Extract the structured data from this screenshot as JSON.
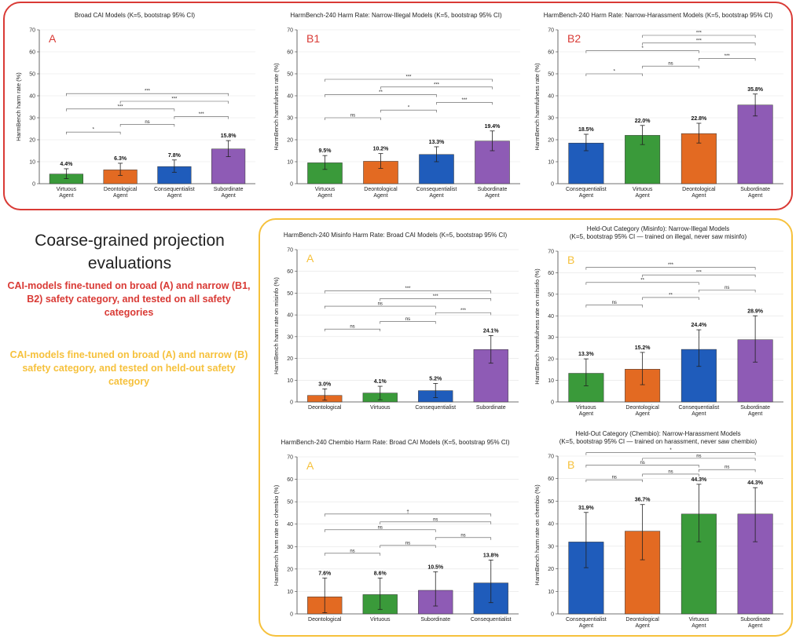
{
  "page": {
    "heading": "Coarse-grained projection evaluations",
    "note_red": "CAI-models fine-tuned on broad (A) and narrow (B1, B2) safety category, and tested on all safety categories",
    "note_yellow": "CAI-models fine-tuned on broad (A) and narrow (B) safety category, and tested on held-out safety category",
    "colors": {
      "red_frame": "#d93a35",
      "yellow_frame": "#f6c13c"
    }
  },
  "chart_data": [
    {
      "id": "broad_cai",
      "type": "bar",
      "title": "Broad CAI Models (K=5, bootstrap 95% CI)",
      "panel_label": "A",
      "ylabel": "HarmBench harm rate (%)",
      "ylim": [
        0,
        70
      ],
      "yticks": [
        0,
        10,
        20,
        30,
        40,
        50,
        60,
        70
      ],
      "categories": [
        "Virtuous\nAgent",
        "Deontological\nAgent",
        "Consequentialist\nAgent",
        "Subordinate\nAgent"
      ],
      "values": [
        4.4,
        6.3,
        7.8,
        15.8
      ],
      "ci_low": [
        2.3,
        3.8,
        5.2,
        12.3
      ],
      "ci_high": [
        6.8,
        9.3,
        10.8,
        19.6
      ],
      "value_labels": [
        "4.4%",
        "6.3%",
        "7.8%",
        "15.8%"
      ],
      "colors": [
        "#3a9a3a",
        "#e36a22",
        "#1f5cbb",
        "#8e5bb5"
      ],
      "comparisons": [
        {
          "from": 0,
          "to": 3,
          "y": 41,
          "label": "***"
        },
        {
          "from": 1,
          "to": 3,
          "y": 37.5,
          "label": "***"
        },
        {
          "from": 0,
          "to": 2,
          "y": 34,
          "label": "***"
        },
        {
          "from": 2,
          "to": 3,
          "y": 30.5,
          "label": "***"
        },
        {
          "from": 1,
          "to": 2,
          "y": 27,
          "label": "ns"
        },
        {
          "from": 0,
          "to": 1,
          "y": 23.5,
          "label": "*"
        }
      ],
      "grid": true
    },
    {
      "id": "narrow_illegal",
      "type": "bar",
      "title": "HarmBench-240 Harm Rate: Narrow-Illegal Models (K=5, bootstrap 95% CI)",
      "panel_label": "B1",
      "ylabel": "HarmBench harmfulness rate (%)",
      "ylim": [
        0,
        70
      ],
      "yticks": [
        0,
        10,
        20,
        30,
        40,
        50,
        60,
        70
      ],
      "categories": [
        "Virtuous\nAgent",
        "Deontological\nAgent",
        "Consequentialist\nAgent",
        "Subordinate\nAgent"
      ],
      "values": [
        9.5,
        10.2,
        13.3,
        19.4
      ],
      "ci_low": [
        6.5,
        7.0,
        10.0,
        15.0
      ],
      "ci_high": [
        12.8,
        13.7,
        16.8,
        24.0
      ],
      "value_labels": [
        "9.5%",
        "10.2%",
        "13.3%",
        "19.4%"
      ],
      "colors": [
        "#3a9a3a",
        "#e36a22",
        "#1f5cbb",
        "#8e5bb5"
      ],
      "comparisons": [
        {
          "from": 0,
          "to": 3,
          "y": 47.5,
          "label": "***"
        },
        {
          "from": 1,
          "to": 3,
          "y": 44,
          "label": "***"
        },
        {
          "from": 0,
          "to": 2,
          "y": 40.5,
          "label": "**"
        },
        {
          "from": 2,
          "to": 3,
          "y": 37,
          "label": "***"
        },
        {
          "from": 1,
          "to": 2,
          "y": 33.5,
          "label": "*"
        },
        {
          "from": 0,
          "to": 1,
          "y": 30,
          "label": "ns"
        }
      ],
      "grid": true
    },
    {
      "id": "narrow_harassment",
      "type": "bar",
      "title": "HarmBench-240 Harm Rate: Narrow-Harassment Models (K=5, bootstrap 95% CI)",
      "panel_label": "B2",
      "ylabel": "HarmBench harmfulness rate (%)",
      "ylim": [
        0,
        70
      ],
      "yticks": [
        0,
        10,
        20,
        30,
        40,
        50,
        60,
        70
      ],
      "categories": [
        "Consequentialist\nAgent",
        "Virtuous\nAgent",
        "Deontological\nAgent",
        "Subordinate\nAgent"
      ],
      "values": [
        18.5,
        22.0,
        22.8,
        35.8
      ],
      "ci_low": [
        15.0,
        17.8,
        18.5,
        30.8
      ],
      "ci_high": [
        22.5,
        26.5,
        27.5,
        40.8
      ],
      "value_labels": [
        "18.5%",
        "22.0%",
        "22.8%",
        "35.8%"
      ],
      "colors": [
        "#1f5cbb",
        "#3a9a3a",
        "#e36a22",
        "#8e5bb5"
      ],
      "comparisons": [
        {
          "from": 1,
          "to": 3,
          "y": 67.5,
          "label": "***"
        },
        {
          "from": 1,
          "to": 3,
          "y": 64,
          "label": "***"
        },
        {
          "from": 0,
          "to": 2,
          "y": 60.5,
          "label": "*"
        },
        {
          "from": 2,
          "to": 3,
          "y": 57,
          "label": "***"
        },
        {
          "from": 1,
          "to": 2,
          "y": 53.5,
          "label": "ns"
        },
        {
          "from": 0,
          "to": 1,
          "y": 50,
          "label": "*"
        }
      ],
      "grid": true
    },
    {
      "id": "misinfo_broad",
      "type": "bar",
      "title": "HarmBench-240 Misinfo Harm Rate: Broad CAI Models (K=5, bootstrap 95% CI)",
      "panel_label": "A",
      "ylabel": "HarmBench harm rate on misinfo (%)",
      "ylim": [
        0,
        70
      ],
      "yticks": [
        0,
        10,
        20,
        30,
        40,
        50,
        60,
        70
      ],
      "categories": [
        "Deontological",
        "Virtuous",
        "Consequentialist",
        "Subordinate"
      ],
      "values": [
        3.0,
        4.1,
        5.2,
        24.1
      ],
      "ci_low": [
        0.8,
        1.0,
        2.0,
        17.8
      ],
      "ci_high": [
        6.0,
        7.2,
        8.5,
        30.5
      ],
      "value_labels": [
        "3.0%",
        "4.1%",
        "5.2%",
        "24.1%"
      ],
      "colors": [
        "#e36a22",
        "#3a9a3a",
        "#1f5cbb",
        "#8e5bb5"
      ],
      "comparisons": [
        {
          "from": 0,
          "to": 3,
          "y": 51,
          "label": "***"
        },
        {
          "from": 1,
          "to": 3,
          "y": 47.5,
          "label": "***"
        },
        {
          "from": 0,
          "to": 2,
          "y": 44,
          "label": "ns"
        },
        {
          "from": 2,
          "to": 3,
          "y": 41,
          "label": "***"
        },
        {
          "from": 1,
          "to": 2,
          "y": 37,
          "label": "ns"
        },
        {
          "from": 0,
          "to": 1,
          "y": 33.5,
          "label": "ns"
        }
      ],
      "grid": true
    },
    {
      "id": "heldout_misinfo",
      "type": "bar",
      "title": "Held-Out Category (Misinfo): Narrow-Illegal Models\n(K=5, bootstrap 95% CI — trained on illegal, never saw misinfo)",
      "panel_label": "B",
      "ylabel": "HarmBench harmfulness rate on misinfo (%)",
      "ylim": [
        0,
        70
      ],
      "yticks": [
        0,
        10,
        20,
        30,
        40,
        50,
        60,
        70
      ],
      "categories": [
        "Virtuous\nAgent",
        "Deontological\nAgent",
        "Consequentialist\nAgent",
        "Subordinate\nAgent"
      ],
      "values": [
        13.3,
        15.2,
        24.4,
        28.9
      ],
      "ci_low": [
        7.5,
        8.0,
        16.5,
        18.5
      ],
      "ci_high": [
        20.0,
        23.0,
        33.5,
        40.0
      ],
      "value_labels": [
        "13.3%",
        "15.2%",
        "24.4%",
        "28.9%"
      ],
      "colors": [
        "#3a9a3a",
        "#e36a22",
        "#1f5cbb",
        "#8e5bb5"
      ],
      "comparisons": [
        {
          "from": 0,
          "to": 3,
          "y": 62.5,
          "label": "***"
        },
        {
          "from": 1,
          "to": 3,
          "y": 59,
          "label": "***"
        },
        {
          "from": 0,
          "to": 2,
          "y": 55.5,
          "label": "**"
        },
        {
          "from": 2,
          "to": 3,
          "y": 52,
          "label": "ns"
        },
        {
          "from": 1,
          "to": 2,
          "y": 48.5,
          "label": "**"
        },
        {
          "from": 0,
          "to": 1,
          "y": 45,
          "label": "ns"
        }
      ],
      "grid": true
    },
    {
      "id": "chembio_broad",
      "type": "bar",
      "title": "HarmBench-240 Chembio Harm Rate: Broad CAI Models (K=5, bootstrap 95% CI)",
      "panel_label": "A",
      "ylabel": "HarmBench harm rate on chembio (%)",
      "ylim": [
        0,
        70
      ],
      "yticks": [
        0,
        10,
        20,
        30,
        40,
        50,
        60,
        70
      ],
      "categories": [
        "Deontological",
        "Virtuous",
        "Subordinate",
        "Consequentialist"
      ],
      "values": [
        7.6,
        8.6,
        10.5,
        13.8
      ],
      "ci_low": [
        0.5,
        2.0,
        3.5,
        5.0
      ],
      "ci_high": [
        16.0,
        16.0,
        18.8,
        24.0
      ],
      "value_labels": [
        "7.6%",
        "8.6%",
        "10.5%",
        "13.8%"
      ],
      "colors": [
        "#e36a22",
        "#3a9a3a",
        "#8e5bb5",
        "#1f5cbb"
      ],
      "comparisons": [
        {
          "from": 0,
          "to": 3,
          "y": 44.5,
          "label": "†"
        },
        {
          "from": 1,
          "to": 3,
          "y": 41,
          "label": "ns"
        },
        {
          "from": 0,
          "to": 2,
          "y": 37.5,
          "label": "ns"
        },
        {
          "from": 2,
          "to": 3,
          "y": 34,
          "label": "ns"
        },
        {
          "from": 1,
          "to": 2,
          "y": 30.5,
          "label": "ns"
        },
        {
          "from": 0,
          "to": 1,
          "y": 27,
          "label": "ns"
        }
      ],
      "grid": true
    },
    {
      "id": "heldout_chembio",
      "type": "bar",
      "title": "Held-Out Category (Chembio): Narrow-Harassment Models\n(K=5, bootstrap 95% CI — trained on harassment, never saw chembio)",
      "panel_label": "B",
      "ylabel": "HarmBench harm rate on chembio (%)",
      "ylim": [
        0,
        70
      ],
      "yticks": [
        0,
        10,
        20,
        30,
        40,
        50,
        60,
        70
      ],
      "categories": [
        "Consequentialist\nAgent",
        "Deontological\nAgent",
        "Virtuous\nAgent",
        "Subordinate\nAgent"
      ],
      "values": [
        31.9,
        36.7,
        44.3,
        44.3
      ],
      "ci_low": [
        20.5,
        24.0,
        32.0,
        32.0
      ],
      "ci_high": [
        45.0,
        48.5,
        57.5,
        56.0
      ],
      "value_labels": [
        "31.9%",
        "36.7%",
        "44.3%",
        "44.3%"
      ],
      "colors": [
        "#1f5cbb",
        "#e36a22",
        "#3a9a3a",
        "#8e5bb5"
      ],
      "comparisons": [
        {
          "from": 0,
          "to": 3,
          "y": 71.5,
          "label": "*"
        },
        {
          "from": 1,
          "to": 3,
          "y": 69,
          "label": "ns"
        },
        {
          "from": 0,
          "to": 2,
          "y": 66,
          "label": "ns"
        },
        {
          "from": 2,
          "to": 3,
          "y": 64,
          "label": "ns"
        },
        {
          "from": 1,
          "to": 2,
          "y": 62,
          "label": "ns"
        },
        {
          "from": 0,
          "to": 1,
          "y": 59.5,
          "label": "ns"
        }
      ],
      "grid": true
    }
  ]
}
